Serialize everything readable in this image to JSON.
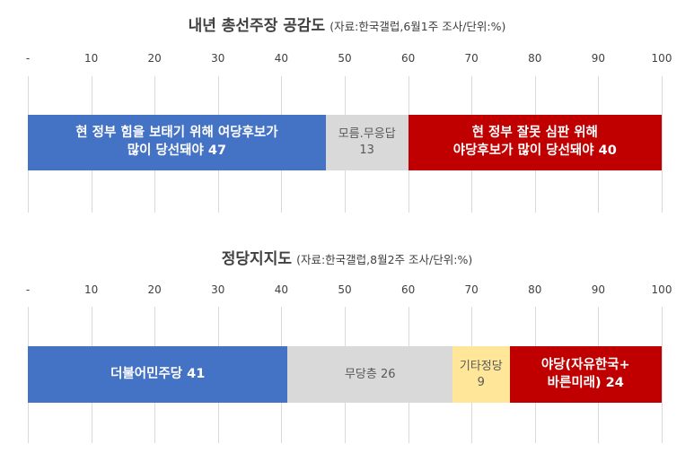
{
  "charts": [
    {
      "title_main": "내년 총선주장 공감도",
      "title_sub": "(자료:한국갤럽,6월1주 조사/단위:%)",
      "ticks": [
        "-",
        "10",
        "20",
        "30",
        "40",
        "50",
        "60",
        "70",
        "80",
        "90",
        "100"
      ]
    },
    {
      "title_main": "정당지지도",
      "title_sub": "(자료:한국갤럽,8월2주 조사/단위:%)",
      "ticks": [
        "-",
        "10",
        "20",
        "30",
        "40",
        "50",
        "60",
        "70",
        "80",
        "90",
        "100"
      ]
    }
  ],
  "colors": {
    "blue": "#4472c4",
    "gray": "#d9d9d9",
    "red": "#c00000",
    "yellow": "#ffe699"
  },
  "chart_data": [
    {
      "type": "bar",
      "orientation": "horizontal-stacked",
      "title": "내년 총선주장 공감도 (자료:한국갤럽,6월1주 조사/단위:%)",
      "xlim": [
        0,
        100
      ],
      "series": [
        {
          "name": "현 정부 힘을 보태기 위해 여당후보가 많이 당선돼야",
          "value": 47,
          "label": "현 정부 힘을 보태기 위해 여당후보가\n많이 당선돼야  47",
          "color": "#4472c4",
          "text_color": "#ffffff",
          "bold": true
        },
        {
          "name": "모름.무응답",
          "value": 13,
          "label": "모름.무응답\n13",
          "color": "#d9d9d9",
          "text_color": "#595959",
          "bold": false
        },
        {
          "name": "현 정부 잘못 심판 위해 야당후보가 많이 당선돼야",
          "value": 40,
          "label": "현 정부 잘못 심판 위해\n야당후보가 많이 당선돼야  40",
          "color": "#c00000",
          "text_color": "#ffffff",
          "bold": true
        }
      ]
    },
    {
      "type": "bar",
      "orientation": "horizontal-stacked",
      "title": "정당지지도 (자료:한국갤럽,8월2주 조사/단위:%)",
      "xlim": [
        0,
        100
      ],
      "series": [
        {
          "name": "더불어민주당",
          "value": 41,
          "label": "더불어민주당  41",
          "color": "#4472c4",
          "text_color": "#ffffff",
          "bold": true
        },
        {
          "name": "무당층",
          "value": 26,
          "label": "무당층  26",
          "color": "#d9d9d9",
          "text_color": "#595959",
          "bold": false
        },
        {
          "name": "기타정당",
          "value": 9,
          "label": "기타정당\n9",
          "color": "#ffe699",
          "text_color": "#595959",
          "bold": false
        },
        {
          "name": "야당(자유한국+바른미래)",
          "value": 24,
          "label": "야당(자유한국+\n바른미래) 24",
          "color": "#c00000",
          "text_color": "#ffffff",
          "bold": true
        }
      ]
    }
  ]
}
